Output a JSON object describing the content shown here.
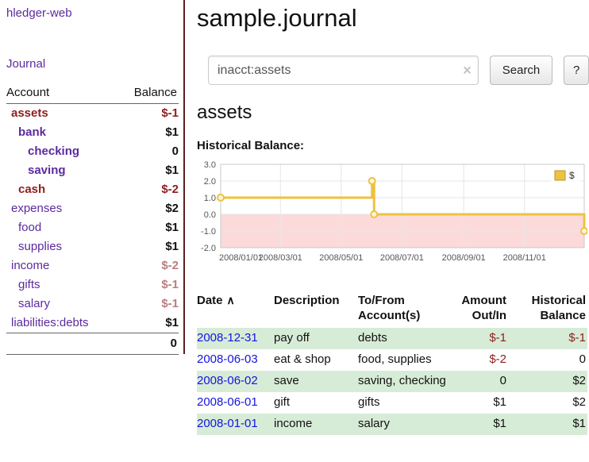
{
  "colors": {
    "purple": "#5c2a9d",
    "blue_link": "#1414e0",
    "neg_strong": "#8f1d1d",
    "neg_muted": "#b97e7e",
    "row_green": "#d7ecd7",
    "chart_line": "#edc240",
    "chart_marker_fill": "#fdf6dd",
    "chart_neg_zone": "#fcdada"
  },
  "sidebar": {
    "app_title": "hledger-web",
    "journal_link": "Journal",
    "accounts": {
      "col_account": "Account",
      "col_balance": "Balance",
      "rows": [
        {
          "name": "assets",
          "balance": "$-1",
          "indent": 0,
          "bold": true,
          "neg": true,
          "muted": false
        },
        {
          "name": "bank",
          "balance": "$1",
          "indent": 1,
          "bold": true,
          "neg": false,
          "muted": false
        },
        {
          "name": "checking",
          "balance": "0",
          "indent": 2,
          "bold": true,
          "neg": false,
          "muted": false
        },
        {
          "name": "saving",
          "balance": "$1",
          "indent": 2,
          "bold": true,
          "neg": false,
          "muted": false
        },
        {
          "name": "cash",
          "balance": "$-2",
          "indent": 1,
          "bold": true,
          "neg": true,
          "muted": false
        },
        {
          "name": "expenses",
          "balance": "$2",
          "indent": 0,
          "bold": false,
          "neg": false,
          "muted": false
        },
        {
          "name": "food",
          "balance": "$1",
          "indent": 1,
          "bold": false,
          "neg": false,
          "muted": false
        },
        {
          "name": "supplies",
          "balance": "$1",
          "indent": 1,
          "bold": false,
          "neg": false,
          "muted": false
        },
        {
          "name": "income",
          "balance": "$-2",
          "indent": 0,
          "bold": false,
          "neg": false,
          "muted": true
        },
        {
          "name": "gifts",
          "balance": "$-1",
          "indent": 1,
          "bold": false,
          "neg": false,
          "muted": true
        },
        {
          "name": "salary",
          "balance": "$-1",
          "indent": 1,
          "bold": false,
          "neg": false,
          "muted": true
        },
        {
          "name": "liabilities:debts",
          "balance": "$1",
          "indent": 0,
          "bold": false,
          "neg": false,
          "muted": false
        }
      ],
      "total": "0"
    }
  },
  "main": {
    "title": "sample.journal",
    "search": {
      "value": "inacct:assets",
      "clear": "×",
      "button": "Search",
      "help": "?"
    },
    "account_heading": "assets",
    "chart_heading": "Historical Balance:"
  },
  "chart_data": {
    "type": "line",
    "step": true,
    "title": "Historical Balance",
    "xlabel": "",
    "ylabel": "",
    "legend_position": "top-right",
    "legend": [
      {
        "label": "$",
        "color": "#edc240"
      }
    ],
    "ylim": [
      -2,
      3
    ],
    "yticks": [
      -2,
      -1,
      0,
      1,
      2,
      3
    ],
    "ytick_labels": [
      "-2.0",
      "-1.0",
      "0.0",
      "1.0",
      "2.0",
      "3.0"
    ],
    "x_range_days": [
      0,
      365
    ],
    "xticks": [
      {
        "day": 0,
        "label": "2008/01/01"
      },
      {
        "day": 60,
        "label": "2008/03/01"
      },
      {
        "day": 121,
        "label": "2008/05/01"
      },
      {
        "day": 182,
        "label": "2008/07/01"
      },
      {
        "day": 244,
        "label": "2008/09/01"
      },
      {
        "day": 305,
        "label": "2008/11/01"
      }
    ],
    "points": [
      {
        "date": "2008-01-01",
        "day": 0,
        "value": 1
      },
      {
        "date": "2008-06-01",
        "day": 152,
        "value": 2
      },
      {
        "date": "2008-06-03",
        "day": 154,
        "value": 0
      },
      {
        "date": "2008-12-31",
        "day": 365,
        "value": -1
      }
    ],
    "negative_zone_below": 0,
    "grid": true
  },
  "register": {
    "headers": {
      "date": "Date",
      "sort_indicator": "∧",
      "description": "Description",
      "account_line1": "To/From",
      "account_line2": "Account(s)",
      "amount_line1": "Amount",
      "amount_line2": "Out/In",
      "balance_line1": "Historical",
      "balance_line2": "Balance"
    },
    "rows": [
      {
        "date": "2008-12-31",
        "description": "pay off",
        "accounts": "debts",
        "amount": "$-1",
        "balance": "$-1"
      },
      {
        "date": "2008-06-03",
        "description": "eat & shop",
        "accounts": "food, supplies",
        "amount": "$-2",
        "balance": "0"
      },
      {
        "date": "2008-06-02",
        "description": "save",
        "accounts": "saving, checking",
        "amount": "0",
        "balance": "$2"
      },
      {
        "date": "2008-06-01",
        "description": "gift",
        "accounts": "gifts",
        "amount": "$1",
        "balance": "$2"
      },
      {
        "date": "2008-01-01",
        "description": "income",
        "accounts": "salary",
        "amount": "$1",
        "balance": "$1"
      }
    ]
  }
}
